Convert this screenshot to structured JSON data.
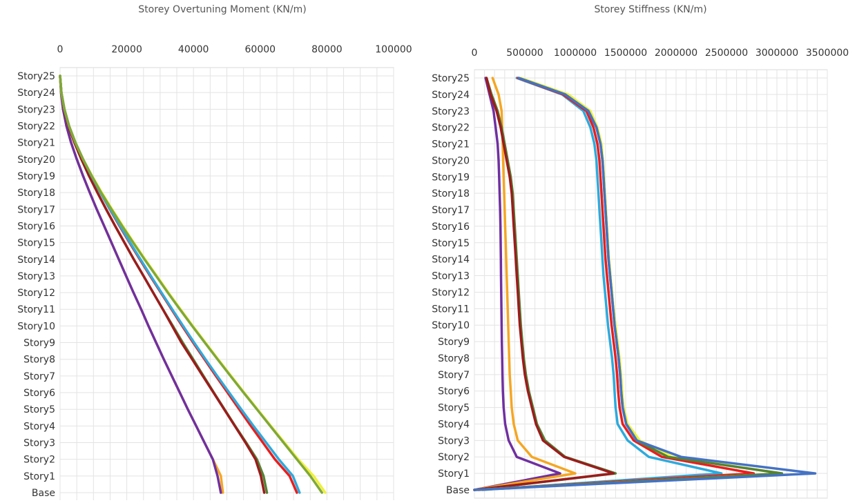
{
  "chart_data": [
    {
      "type": "line",
      "title": "Storey Overtuning Moment (KN/m)",
      "xlim": [
        0,
        100000
      ],
      "xticks": [
        0,
        20000,
        40000,
        60000,
        80000,
        100000
      ],
      "categories": [
        "Story25",
        "Story24",
        "Story23",
        "Story22",
        "Story21",
        "Story20",
        "Story19",
        "Story18",
        "Story17",
        "Story16",
        "Story15",
        "Story14",
        "Story13",
        "Story12",
        "Story11",
        "Story10",
        "Story9",
        "Story8",
        "Story7",
        "Story6",
        "Story5",
        "Story4",
        "Story3",
        "Story2",
        "Story1",
        "Base"
      ],
      "grid": true,
      "series": [
        {
          "color": "#f5a623",
          "values": [
            0,
            300,
            900,
            1900,
            3300,
            5000,
            6900,
            8900,
            11000,
            13200,
            15400,
            17600,
            19800,
            22000,
            24300,
            26500,
            28800,
            31100,
            33500,
            35900,
            38300,
            40800,
            43300,
            45800,
            48200,
            48800
          ]
        },
        {
          "color": "#7030a0",
          "values": [
            0,
            300,
            900,
            1900,
            3300,
            5000,
            6900,
            8900,
            11000,
            13200,
            15400,
            17600,
            19800,
            22000,
            24300,
            26500,
            28800,
            31100,
            33500,
            35900,
            38300,
            40800,
            43300,
            45800,
            47200,
            48200
          ]
        },
        {
          "color": "#548235",
          "values": [
            0,
            400,
            1200,
            2500,
            4300,
            6400,
            8700,
            11200,
            13800,
            16500,
            19300,
            22100,
            25000,
            27900,
            30800,
            33800,
            36800,
            39900,
            43000,
            46100,
            49300,
            52500,
            55800,
            59000,
            61000,
            62000
          ]
        },
        {
          "color": "#9b1c1c",
          "values": [
            0,
            400,
            1200,
            2500,
            4300,
            6400,
            8700,
            11200,
            13800,
            16500,
            19300,
            22100,
            25000,
            27900,
            30800,
            33600,
            36400,
            39600,
            42800,
            46000,
            49200,
            52400,
            55600,
            58600,
            60200,
            61200
          ]
        },
        {
          "color": "#e81e1e",
          "values": [
            0,
            400,
            1300,
            2700,
            4600,
            6900,
            9400,
            12100,
            14900,
            17800,
            20800,
            23900,
            27000,
            30200,
            33400,
            36600,
            39900,
            43300,
            46700,
            50200,
            53700,
            57200,
            60800,
            64400,
            68800,
            71000
          ]
        },
        {
          "color": "#2eaadc",
          "values": [
            0,
            400,
            1300,
            2700,
            4600,
            6900,
            9400,
            12100,
            15000,
            18000,
            21000,
            24100,
            27200,
            30400,
            33600,
            36900,
            40200,
            43600,
            47100,
            50700,
            54300,
            58000,
            61800,
            65600,
            69800,
            71800
          ]
        },
        {
          "color": "#eef03a",
          "values": [
            0,
            400,
            1300,
            2700,
            4600,
            6900,
            9600,
            12500,
            15600,
            18800,
            22100,
            25500,
            29000,
            32500,
            36100,
            39800,
            43600,
            47400,
            51300,
            55200,
            59200,
            63200,
            67300,
            71400,
            76000,
            79500
          ]
        },
        {
          "color": "#7fa83a",
          "values": [
            0,
            400,
            1300,
            2700,
            4600,
            6900,
            9500,
            12300,
            15400,
            18600,
            21900,
            25300,
            28800,
            32300,
            35900,
            39600,
            43400,
            47200,
            51100,
            55000,
            59000,
            63000,
            67000,
            71000,
            75000,
            78500
          ]
        }
      ]
    },
    {
      "type": "line",
      "title": "Storey Stiffness (KN/m)",
      "xlim": [
        0,
        3500000
      ],
      "xticks": [
        0,
        500000,
        1000000,
        1500000,
        2000000,
        2500000,
        3000000,
        3500000
      ],
      "categories": [
        "Story25",
        "Story24",
        "Story23",
        "Story22",
        "Story21",
        "Story20",
        "Story19",
        "Story18",
        "Story17",
        "Story16",
        "Story15",
        "Story14",
        "Story13",
        "Story12",
        "Story11",
        "Story10",
        "Story9",
        "Story8",
        "Story7",
        "Story6",
        "Story5",
        "Story4",
        "Story3",
        "Story2",
        "Story1",
        "Base"
      ],
      "grid": true,
      "series": [
        {
          "color": "#7030a0",
          "values": [
            110000,
            150000,
            190000,
            210000,
            230000,
            240000,
            245000,
            250000,
            255000,
            258000,
            260000,
            262000,
            264000,
            266000,
            268000,
            270000,
            272000,
            275000,
            278000,
            282000,
            290000,
            305000,
            340000,
            420000,
            850000,
            0
          ]
        },
        {
          "color": "#f5a623",
          "values": [
            180000,
            240000,
            270000,
            275000,
            280000,
            285000,
            290000,
            295000,
            300000,
            305000,
            310000,
            315000,
            320000,
            325000,
            330000,
            335000,
            340000,
            345000,
            350000,
            360000,
            370000,
            390000,
            430000,
            570000,
            1000000,
            0
          ]
        },
        {
          "color": "#548235",
          "values": [
            120000,
            170000,
            230000,
            270000,
            300000,
            330000,
            360000,
            380000,
            390000,
            400000,
            410000,
            420000,
            430000,
            440000,
            450000,
            460000,
            475000,
            490000,
            510000,
            540000,
            580000,
            620000,
            700000,
            900000,
            1400000,
            0
          ]
        },
        {
          "color": "#9b1c1c",
          "values": [
            120000,
            160000,
            220000,
            260000,
            290000,
            320000,
            350000,
            370000,
            380000,
            390000,
            400000,
            410000,
            420000,
            430000,
            440000,
            450000,
            465000,
            480000,
            500000,
            530000,
            570000,
            610000,
            680000,
            890000,
            1380000,
            0
          ]
        },
        {
          "color": "#2eaadc",
          "values": [
            420000,
            870000,
            1080000,
            1150000,
            1190000,
            1210000,
            1220000,
            1230000,
            1240000,
            1250000,
            1260000,
            1270000,
            1280000,
            1295000,
            1310000,
            1325000,
            1345000,
            1365000,
            1380000,
            1390000,
            1400000,
            1420000,
            1520000,
            1730000,
            2450000,
            80000
          ]
        },
        {
          "color": "#e81e1e",
          "values": [
            430000,
            880000,
            1110000,
            1180000,
            1220000,
            1240000,
            1250000,
            1260000,
            1270000,
            1280000,
            1290000,
            1300000,
            1315000,
            1330000,
            1345000,
            1360000,
            1380000,
            1400000,
            1415000,
            1425000,
            1440000,
            1470000,
            1580000,
            1860000,
            2770000,
            40000
          ]
        },
        {
          "color": "#eef03a",
          "values": [
            460000,
            930000,
            1150000,
            1220000,
            1260000,
            1275000,
            1285000,
            1295000,
            1305000,
            1315000,
            1325000,
            1335000,
            1350000,
            1365000,
            1380000,
            1400000,
            1420000,
            1440000,
            1455000,
            1465000,
            1480000,
            1520000,
            1640000,
            1960000,
            3050000,
            20000
          ]
        },
        {
          "color": "#548235",
          "values": [
            440000,
            900000,
            1130000,
            1210000,
            1250000,
            1270000,
            1280000,
            1290000,
            1300000,
            1310000,
            1320000,
            1330000,
            1345000,
            1360000,
            1375000,
            1390000,
            1410000,
            1430000,
            1445000,
            1455000,
            1470000,
            1505000,
            1610000,
            1920000,
            3050000,
            10000
          ]
        },
        {
          "color": "#4472c4",
          "values": [
            440000,
            900000,
            1130000,
            1210000,
            1250000,
            1270000,
            1280000,
            1290000,
            1300000,
            1310000,
            1320000,
            1330000,
            1345000,
            1360000,
            1375000,
            1390000,
            1410000,
            1430000,
            1445000,
            1455000,
            1470000,
            1505000,
            1610000,
            2050000,
            3380000,
            0
          ]
        }
      ]
    }
  ]
}
